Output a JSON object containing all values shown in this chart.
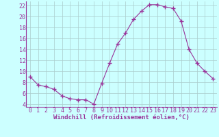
{
  "x": [
    0,
    1,
    2,
    3,
    4,
    5,
    6,
    7,
    8,
    9,
    10,
    11,
    12,
    13,
    14,
    15,
    16,
    17,
    18,
    19,
    20,
    21,
    22,
    23
  ],
  "y": [
    9.0,
    7.5,
    7.2,
    6.7,
    5.5,
    5.0,
    4.8,
    4.8,
    4.0,
    7.8,
    11.5,
    15.0,
    17.0,
    19.5,
    21.0,
    22.2,
    22.2,
    21.8,
    21.5,
    19.2,
    14.0,
    11.5,
    10.0,
    8.7
  ],
  "line_color": "#993399",
  "marker": "+",
  "marker_size": 4,
  "bg_color": "#ccffff",
  "grid_color": "#aacccc",
  "xlabel": "Windchill (Refroidissement éolien,°C)",
  "xlabel_fontsize": 6.5,
  "tick_fontsize": 6,
  "ylim": [
    3.5,
    22.8
  ],
  "yticks": [
    4,
    6,
    8,
    10,
    12,
    14,
    16,
    18,
    20,
    22
  ],
  "xlim": [
    -0.5,
    23.5
  ],
  "xticks": [
    0,
    1,
    2,
    3,
    4,
    5,
    6,
    7,
    8,
    9,
    10,
    11,
    12,
    13,
    14,
    15,
    16,
    17,
    18,
    19,
    20,
    21,
    22,
    23
  ]
}
